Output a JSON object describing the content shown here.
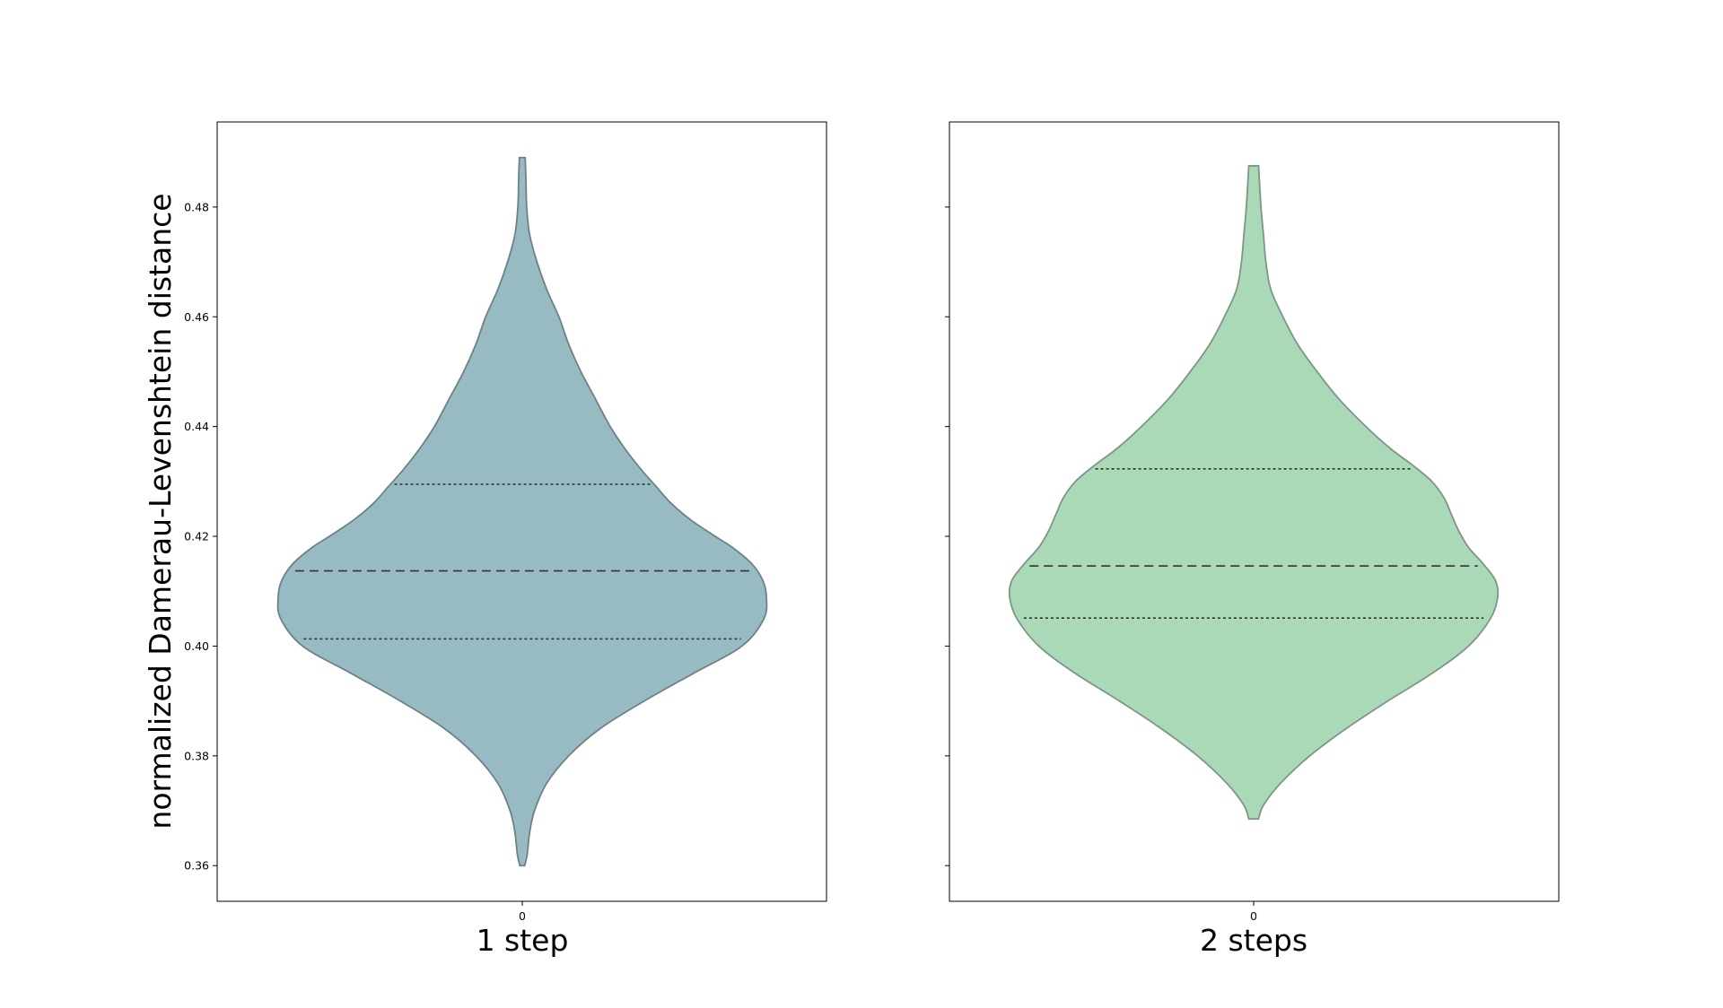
{
  "chart_data": {
    "type": "violin",
    "ylabel": "normalized Damerau-Levenshtein distance",
    "ylim": [
      0.3535,
      0.4955
    ],
    "yticks": [
      "0.36",
      "0.38",
      "0.40",
      "0.42",
      "0.44",
      "0.46",
      "0.48"
    ],
    "yticks_values": [
      0.36,
      0.38,
      0.4,
      0.42,
      0.44,
      0.46,
      0.48
    ],
    "grid": false,
    "panels": [
      {
        "xtick": "0",
        "xlabel": "1 step",
        "color": "#98bbc3",
        "edge_color": "#6e8185",
        "min": 0.36,
        "max": 0.489,
        "q1": 0.4013,
        "median": 0.4137,
        "q3": 0.4295,
        "density": [
          [
            0.36,
            0.01
          ],
          [
            0.362,
            0.02
          ],
          [
            0.366,
            0.03
          ],
          [
            0.37,
            0.05
          ],
          [
            0.375,
            0.1
          ],
          [
            0.38,
            0.19
          ],
          [
            0.385,
            0.32
          ],
          [
            0.39,
            0.5
          ],
          [
            0.395,
            0.7
          ],
          [
            0.4,
            0.9
          ],
          [
            0.405,
            0.99
          ],
          [
            0.409,
            1.0
          ],
          [
            0.412,
            0.985
          ],
          [
            0.415,
            0.94
          ],
          [
            0.418,
            0.86
          ],
          [
            0.42,
            0.79
          ],
          [
            0.423,
            0.69
          ],
          [
            0.426,
            0.61
          ],
          [
            0.429,
            0.55
          ],
          [
            0.432,
            0.49
          ],
          [
            0.436,
            0.42
          ],
          [
            0.44,
            0.36
          ],
          [
            0.445,
            0.3
          ],
          [
            0.45,
            0.24
          ],
          [
            0.455,
            0.19
          ],
          [
            0.46,
            0.15
          ],
          [
            0.465,
            0.1
          ],
          [
            0.47,
            0.06
          ],
          [
            0.475,
            0.03
          ],
          [
            0.48,
            0.018
          ],
          [
            0.485,
            0.015
          ],
          [
            0.489,
            0.012
          ]
        ]
      },
      {
        "xtick": "0",
        "xlabel": "2 steps",
        "color": "#aad9b8",
        "edge_color": "#7f9585",
        "min": 0.3685,
        "max": 0.4875,
        "q1": 0.4051,
        "median": 0.4146,
        "q3": 0.4323,
        "density": [
          [
            0.3685,
            0.02
          ],
          [
            0.371,
            0.04
          ],
          [
            0.375,
            0.11
          ],
          [
            0.38,
            0.23
          ],
          [
            0.385,
            0.38
          ],
          [
            0.39,
            0.55
          ],
          [
            0.395,
            0.73
          ],
          [
            0.4,
            0.88
          ],
          [
            0.405,
            0.97
          ],
          [
            0.409,
            1.0
          ],
          [
            0.412,
            0.99
          ],
          [
            0.415,
            0.94
          ],
          [
            0.418,
            0.88
          ],
          [
            0.421,
            0.84
          ],
          [
            0.424,
            0.81
          ],
          [
            0.427,
            0.78
          ],
          [
            0.43,
            0.73
          ],
          [
            0.433,
            0.65
          ],
          [
            0.436,
            0.56
          ],
          [
            0.44,
            0.46
          ],
          [
            0.445,
            0.35
          ],
          [
            0.45,
            0.26
          ],
          [
            0.455,
            0.18
          ],
          [
            0.46,
            0.12
          ],
          [
            0.465,
            0.07
          ],
          [
            0.47,
            0.05
          ],
          [
            0.475,
            0.04
          ],
          [
            0.48,
            0.03
          ],
          [
            0.4875,
            0.02
          ]
        ]
      }
    ]
  }
}
